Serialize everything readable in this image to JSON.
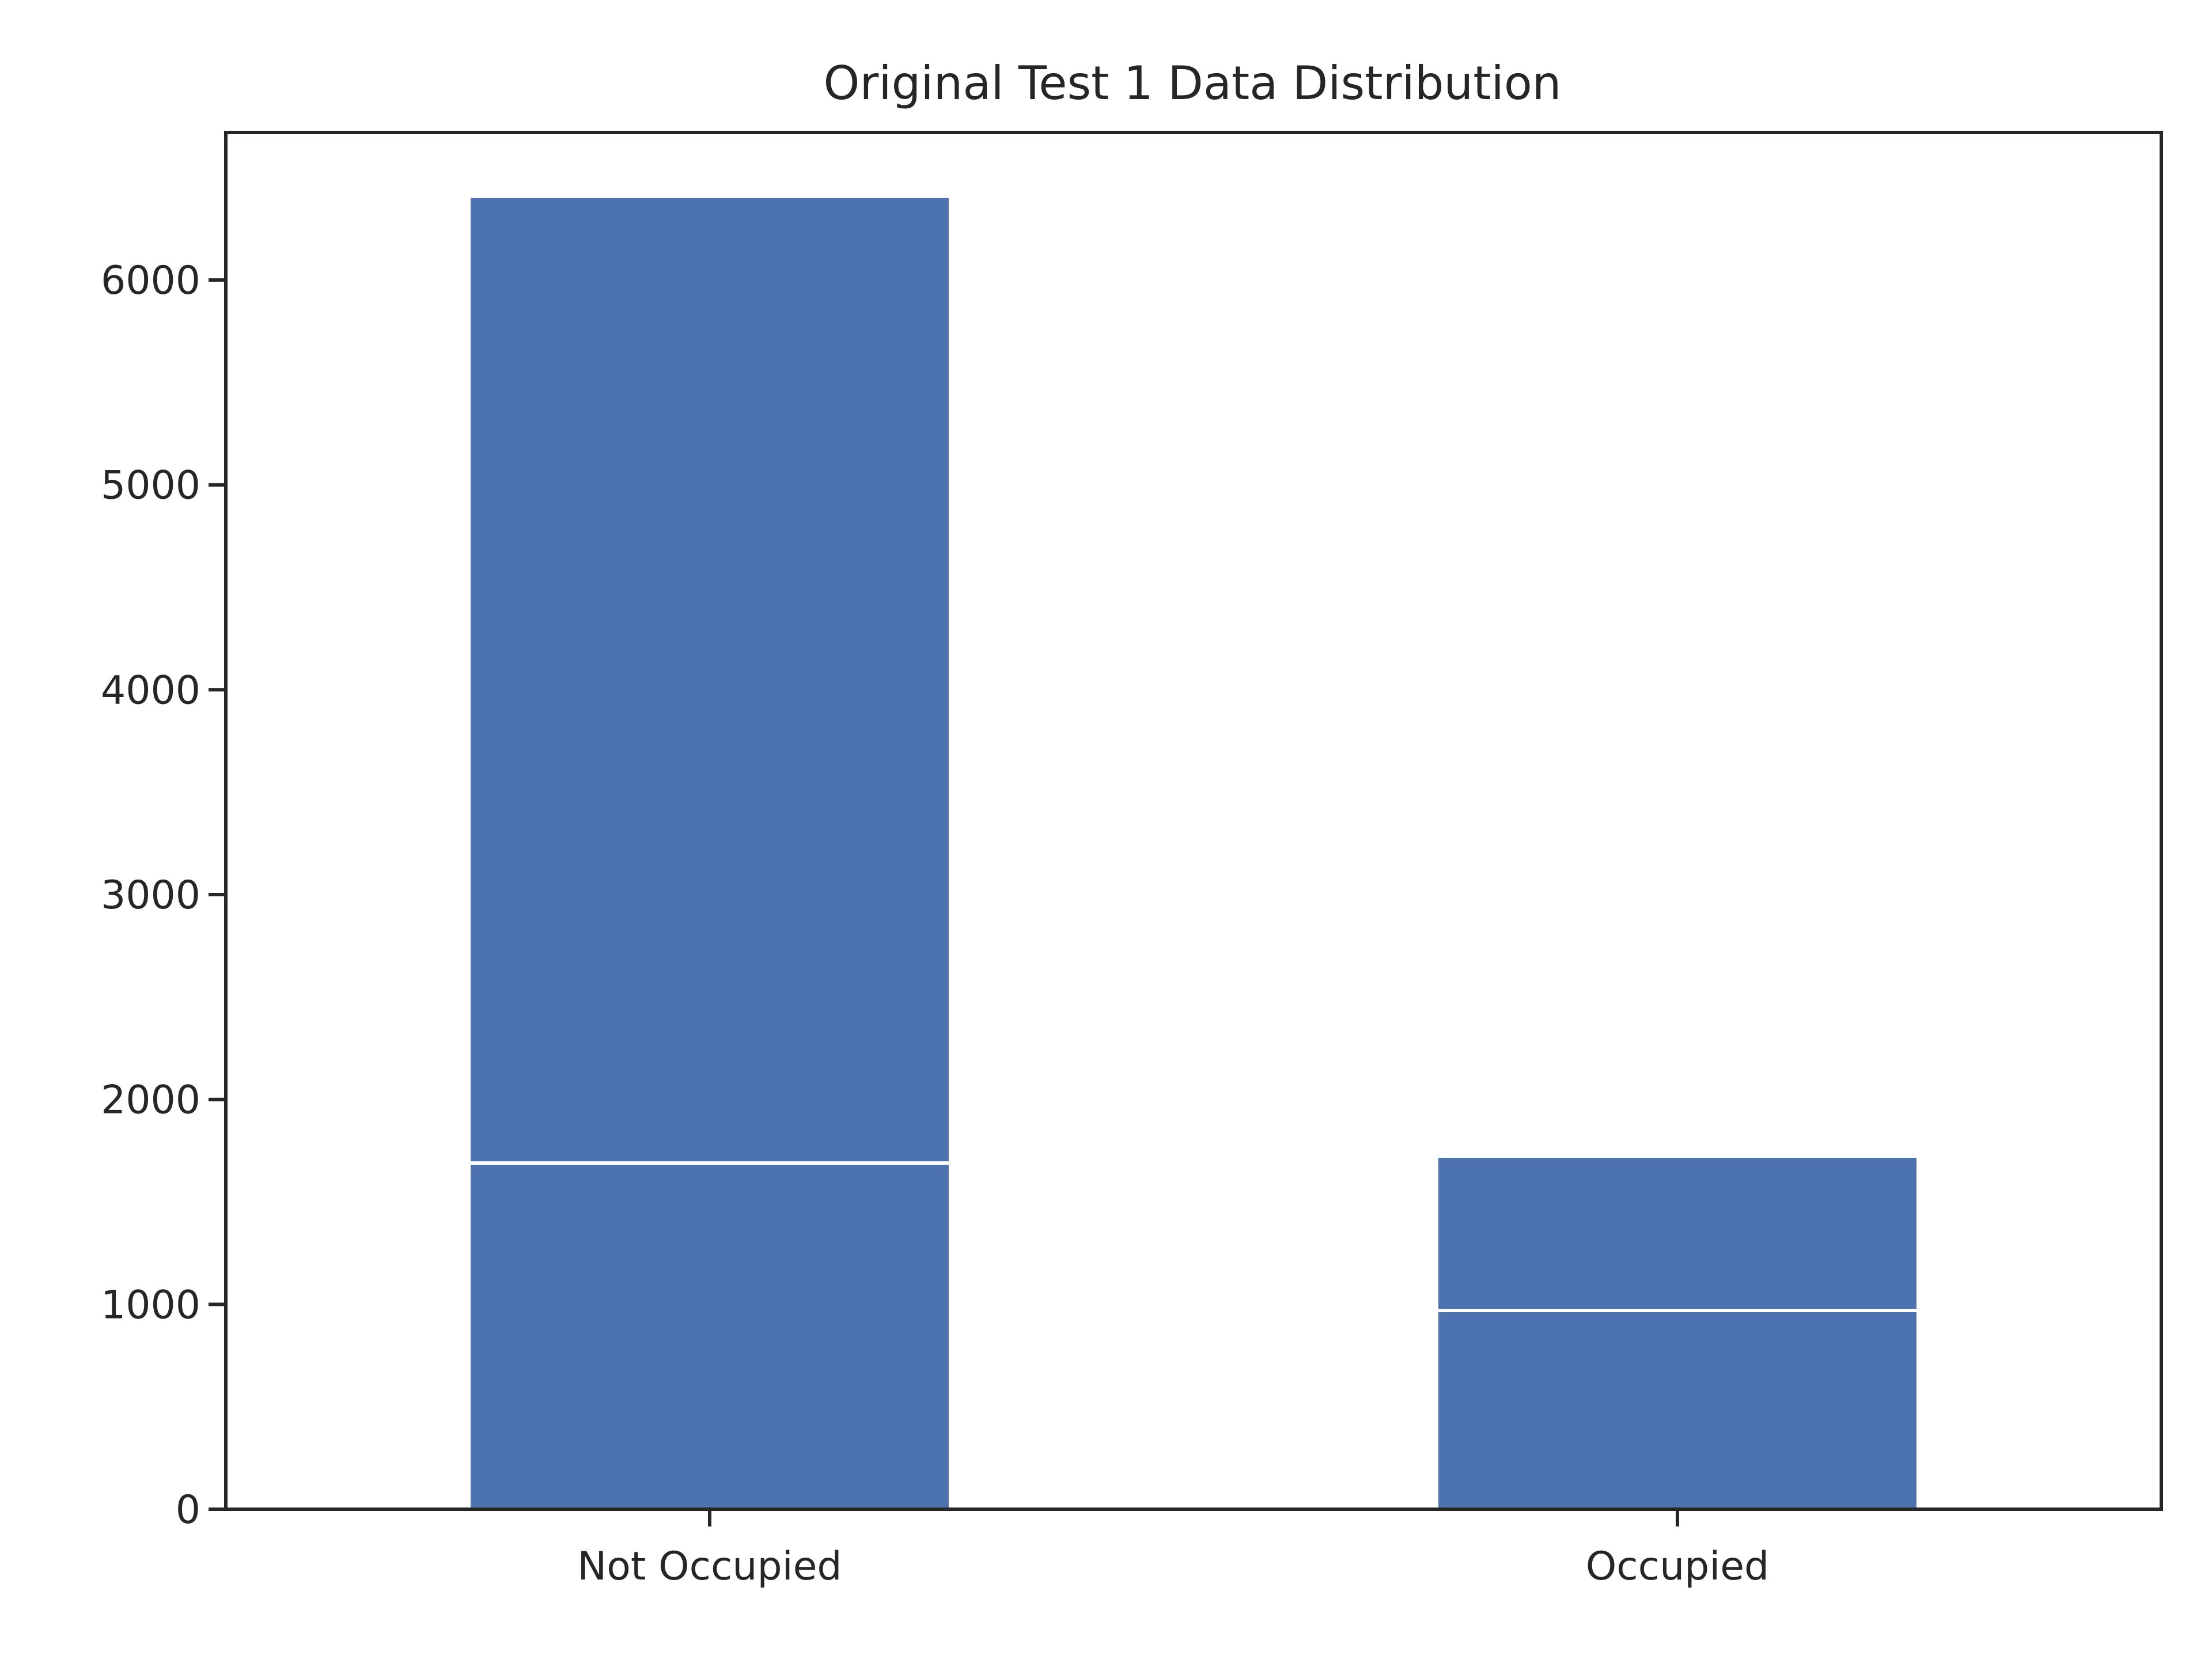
{
  "chart_data": {
    "type": "bar",
    "title": "Original Test 1 Data Distribution",
    "xlabel": "",
    "ylabel": "",
    "categories": [
      "Not Occupied",
      "Occupied"
    ],
    "values": [
      6400,
      1715
    ],
    "internal_line_values": [
      1690,
      970
    ],
    "bar_color": "#4c72b0",
    "ylim": [
      0,
      6720
    ],
    "yticks": [
      0,
      1000,
      2000,
      3000,
      4000,
      5000,
      6000
    ],
    "grid": false,
    "legend": "none"
  }
}
